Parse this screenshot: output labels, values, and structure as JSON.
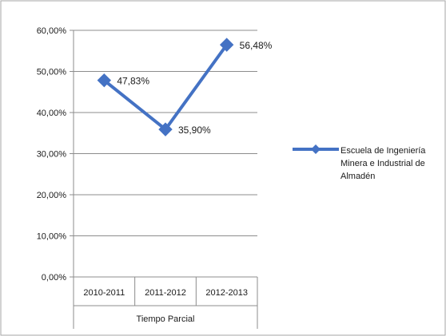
{
  "chart_data": {
    "type": "line",
    "categories": [
      "2010-2011",
      "2011-2012",
      "2012-2013"
    ],
    "category_group_label": "Tiempo Parcial",
    "series": [
      {
        "name": "Escuela de Ingeniería Minera e Industrial de Almadén",
        "values": [
          47.83,
          35.9,
          56.48
        ],
        "data_labels": [
          "47,83%",
          "35,90%",
          "56,48%"
        ],
        "color": "#4472C4"
      }
    ],
    "y_ticks": [
      "0,00%",
      "10,00%",
      "20,00%",
      "30,00%",
      "40,00%",
      "50,00%",
      "60,00%"
    ],
    "ylim": [
      0,
      60
    ],
    "y_unit": "%",
    "grid": true,
    "legend_position": "right"
  }
}
